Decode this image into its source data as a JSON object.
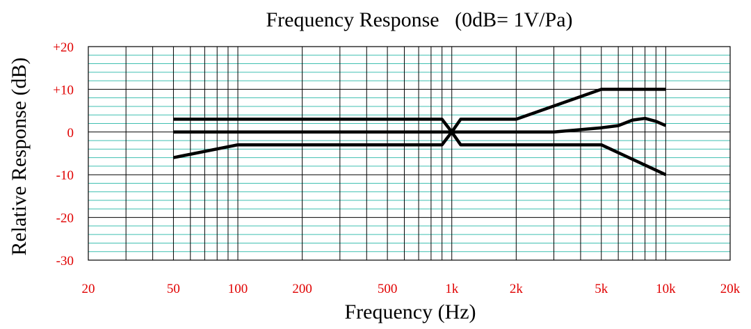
{
  "chart_data": {
    "type": "line",
    "title": "Frequency Response   (0dB= 1V/Pa)",
    "xlabel": "Frequency (Hz)",
    "ylabel": "Relative Response (dB)",
    "x_scale": "log",
    "xlim": [
      20,
      20000
    ],
    "ylim": [
      -30,
      20
    ],
    "x_tick_values": [
      20,
      50,
      100,
      200,
      500,
      1000,
      2000,
      5000,
      10000,
      20000
    ],
    "x_tick_labels": [
      "20",
      "50",
      "100",
      "200",
      "500",
      "1k",
      "2k",
      "5k",
      "10k",
      "20k"
    ],
    "y_tick_values": [
      20,
      10,
      0,
      -10,
      -20,
      -30
    ],
    "y_tick_labels": [
      "+20",
      "+10",
      "0",
      "-10",
      "-20",
      "-30"
    ],
    "grid": true,
    "colors": {
      "major_grid": "#000000",
      "minor_grid": "#3fbfb0",
      "curve": "#000000",
      "tick_labels": "#e00000"
    },
    "series": [
      {
        "x": [
          50,
          900,
          1000,
          1100,
          2000,
          5000,
          10000
        ],
        "y": [
          3,
          3,
          0,
          3,
          3,
          10,
          10
        ]
      },
      {
        "x": [
          50,
          1000,
          3000,
          5000,
          6000,
          7000,
          8000,
          9000,
          10000
        ],
        "y": [
          0,
          0,
          0,
          1,
          1.5,
          2.8,
          3.2,
          2.5,
          1.5
        ]
      },
      {
        "x": [
          50,
          100,
          900,
          1000,
          1100,
          5000,
          10000
        ],
        "y": [
          -6,
          -3,
          -3,
          0,
          -3,
          -3,
          -10
        ]
      }
    ]
  }
}
